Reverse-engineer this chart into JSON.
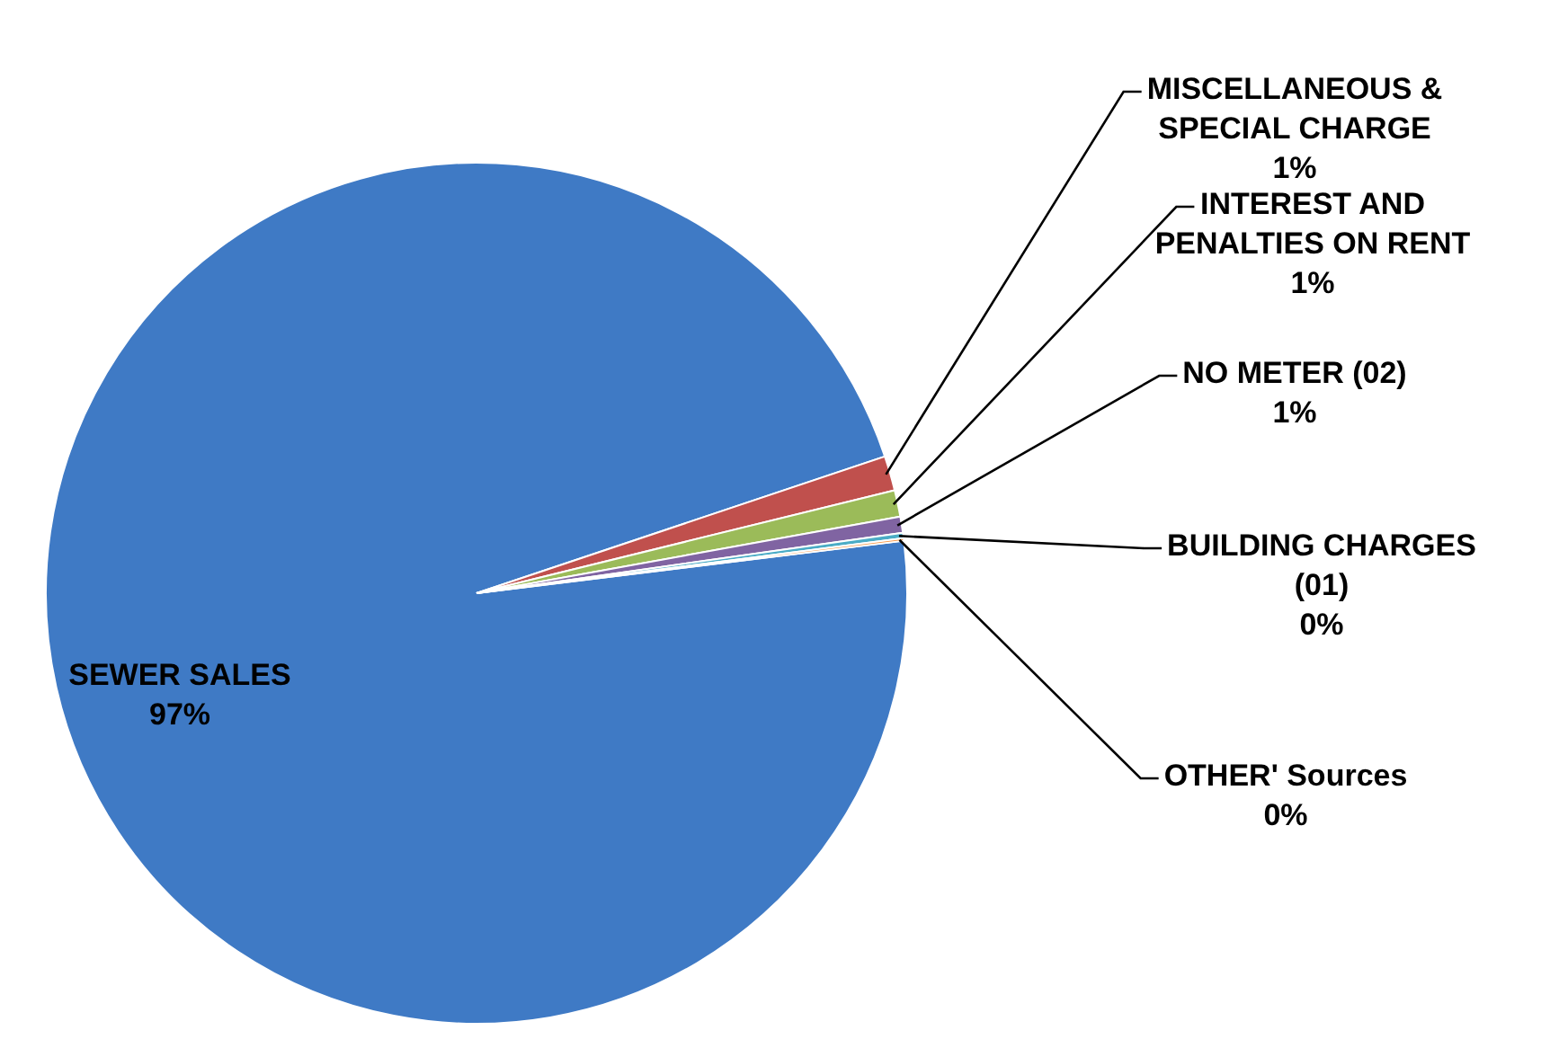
{
  "chart_data": {
    "type": "pie",
    "categories": [
      "SEWER SALES",
      "MISCELLANEOUS & SPECIAL CHARGE",
      "INTEREST AND PENALTIES ON RENT",
      "NO METER (02)",
      "BUILDING CHARGES (01)",
      "OTHER' Sources"
    ],
    "values": [
      96.8,
      1.3,
      1.0,
      0.6,
      0.2,
      0.1
    ],
    "colors": [
      "#3f7ac5",
      "#c0504d",
      "#9bbb59",
      "#8064a2",
      "#4bacc6",
      "#f79646"
    ],
    "value_labels": [
      "97%",
      "1%",
      "1%",
      "1%",
      "0%",
      "0%"
    ],
    "legend": false
  }
}
